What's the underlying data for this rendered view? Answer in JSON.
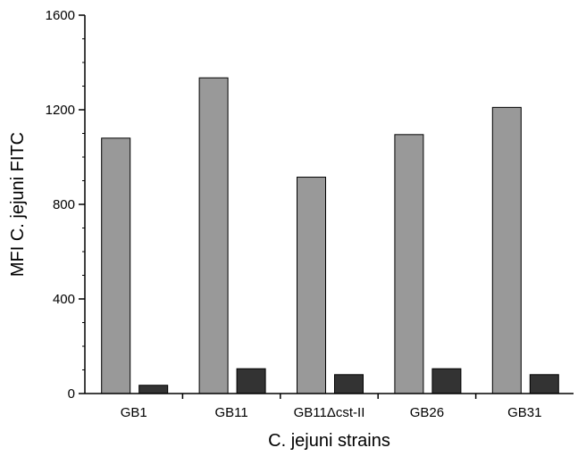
{
  "chart_data": {
    "type": "bar",
    "title": "",
    "xlabel": "C. jejuni strains",
    "ylabel": "MFI C. jejuni FITC",
    "categories": [
      "GB1",
      "GB11",
      "GB11Δcst-II",
      "GB26",
      "GB31"
    ],
    "series": [
      {
        "values": [
          1080,
          1335,
          915,
          1095,
          1210
        ],
        "color": "#999999"
      },
      {
        "values": [
          35,
          105,
          80,
          105,
          80
        ],
        "color": "#333333"
      }
    ],
    "ylim": [
      0,
      1600
    ],
    "yticks": [
      0,
      400,
      800,
      1200,
      1600
    ],
    "y_minor_step": 100,
    "grid": false,
    "legend": "none"
  }
}
